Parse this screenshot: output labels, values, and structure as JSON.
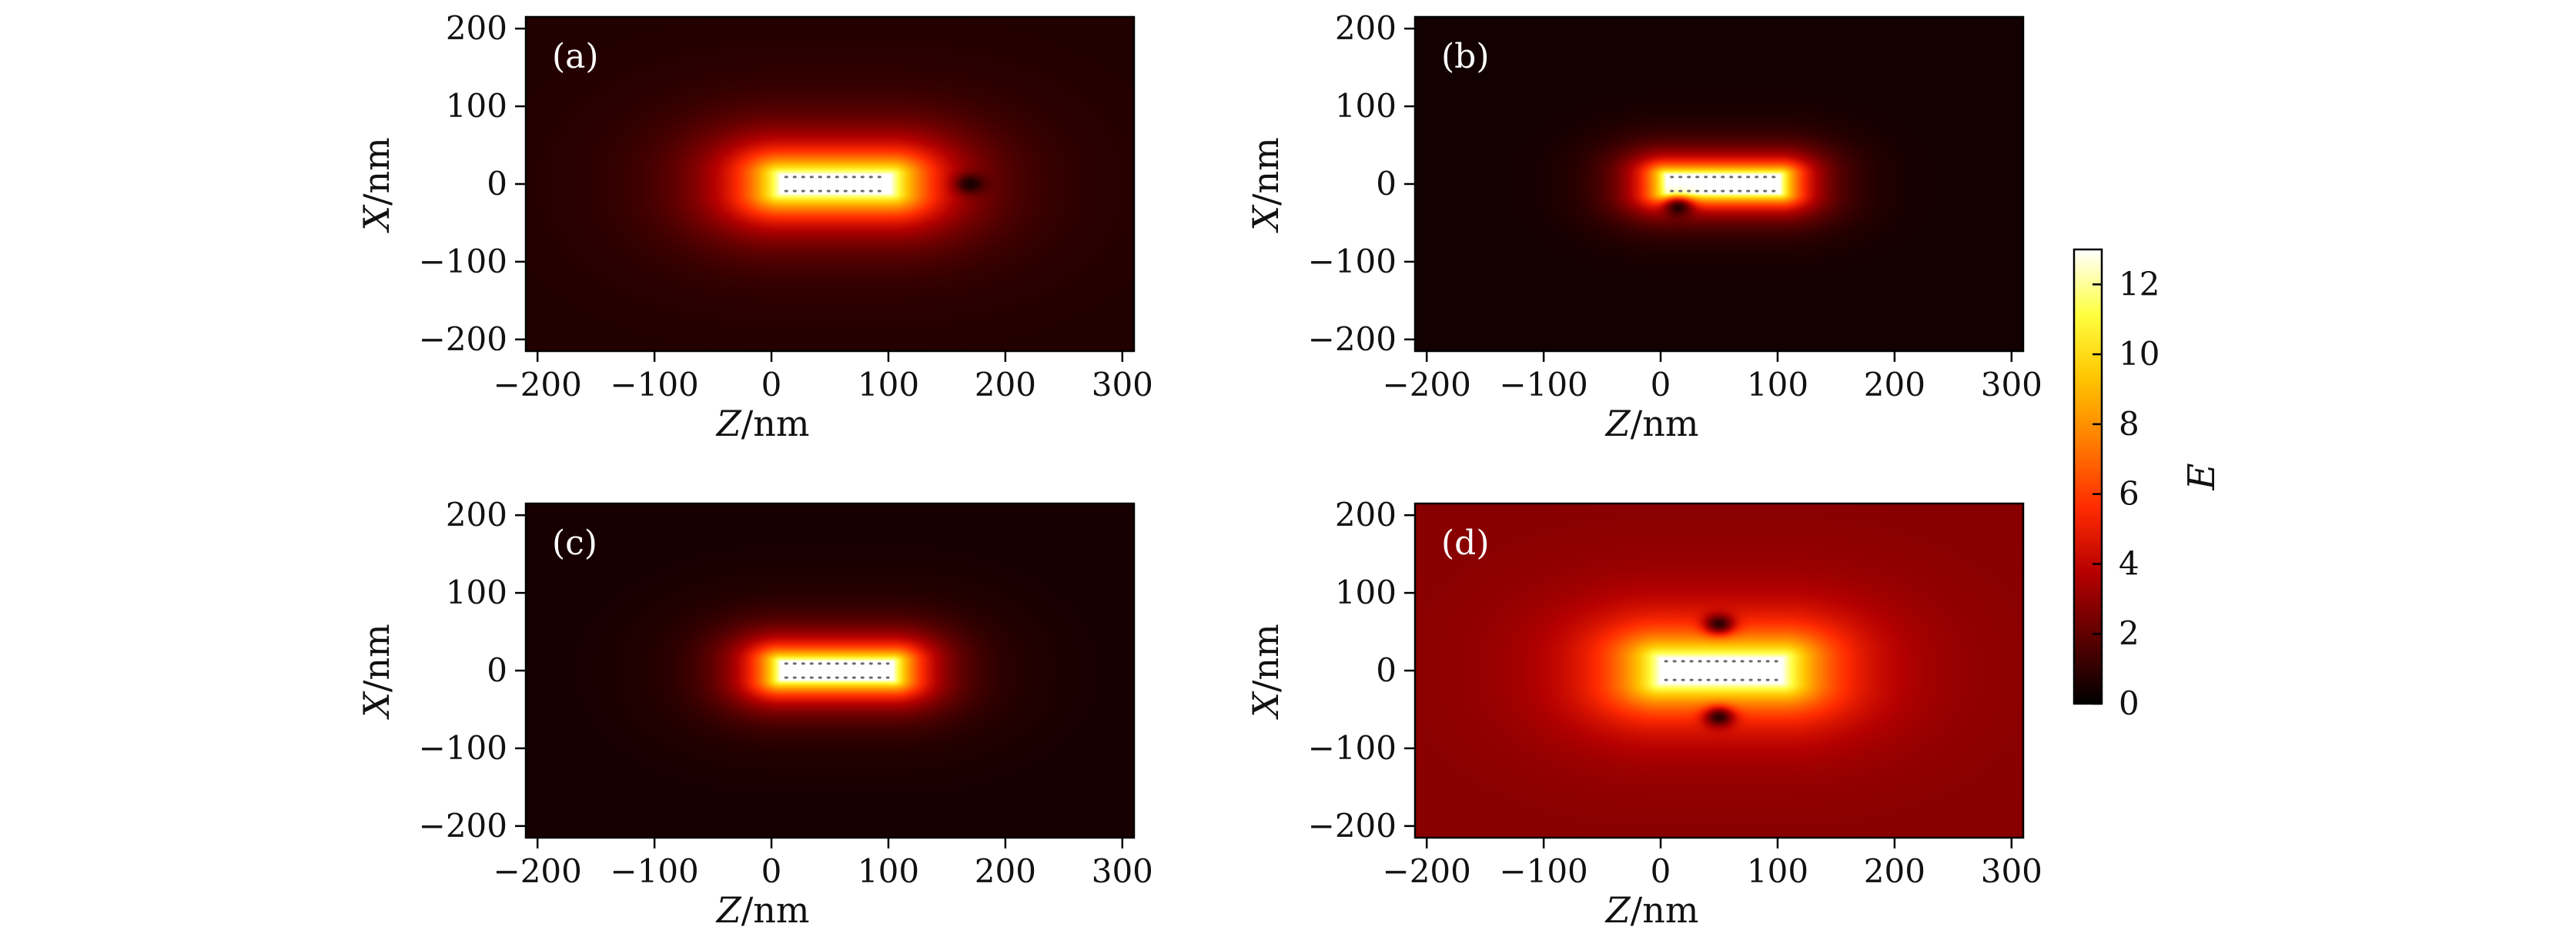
{
  "chart_data": [
    {
      "type": "heatmap",
      "panel_label": "(a)",
      "xlabel": "Z/nm",
      "ylabel": "X/nm",
      "xlim": [
        -210,
        310
      ],
      "ylim": [
        -215,
        215
      ],
      "xticks": [
        -200,
        -100,
        0,
        100,
        200,
        300
      ],
      "yticks": [
        -200,
        -100,
        0,
        100,
        200
      ],
      "rod": {
        "z_range": [
          8,
          102
        ],
        "x_range": [
          -12,
          12
        ]
      },
      "background_E": 0.7,
      "near_field_E": 13,
      "decay_length_z": 95,
      "decay_length_x": 80,
      "dark_spot": {
        "z": 170,
        "x": 0
      }
    },
    {
      "type": "heatmap",
      "panel_label": "(b)",
      "xlabel": "Z/nm",
      "ylabel": "X/nm",
      "xlim": [
        -210,
        310
      ],
      "ylim": [
        -215,
        215
      ],
      "xticks": [
        -200,
        -100,
        0,
        100,
        200,
        300
      ],
      "yticks": [
        -200,
        -100,
        0,
        100,
        200
      ],
      "rod": {
        "z_range": [
          5,
          102
        ],
        "x_range": [
          -12,
          12
        ]
      },
      "background_E": 0.4,
      "near_field_E": 13,
      "decay_length_z": 55,
      "decay_length_x": 45,
      "dark_spot": {
        "z": 15,
        "x": -30
      }
    },
    {
      "type": "heatmap",
      "panel_label": "(c)",
      "xlabel": "Z/nm",
      "ylabel": "X/nm",
      "xlim": [
        -210,
        310
      ],
      "ylim": [
        -215,
        215
      ],
      "xticks": [
        -200,
        -100,
        0,
        100,
        200,
        300
      ],
      "yticks": [
        -200,
        -100,
        0,
        100,
        200
      ],
      "rod": {
        "z_range": [
          8,
          104
        ],
        "x_range": [
          -12,
          12
        ]
      },
      "background_E": 0.5,
      "near_field_E": 13,
      "decay_length_z": 65,
      "decay_length_x": 55,
      "dark_spot": null
    },
    {
      "type": "heatmap",
      "panel_label": "(d)",
      "xlabel": "Z/nm",
      "ylabel": "X/nm",
      "xlim": [
        -210,
        310
      ],
      "ylim": [
        -215,
        215
      ],
      "xticks": [
        -200,
        -100,
        0,
        100,
        200,
        300
      ],
      "yticks": [
        -200,
        -100,
        0,
        100,
        200
      ],
      "rod": {
        "z_range": [
          0,
          104
        ],
        "x_range": [
          -16,
          16
        ]
      },
      "background_E": 2.8,
      "near_field_E": 13,
      "decay_length_z": 100,
      "decay_length_x": 85,
      "dark_spot": {
        "z": 50,
        "x": 60
      },
      "dark_spot_2": {
        "z": 50,
        "x": -60
      }
    }
  ],
  "colorbar": {
    "label": "E",
    "min": 0,
    "max": 13,
    "ticks": [
      0,
      2,
      4,
      6,
      8,
      10,
      12
    ],
    "colormap": "hot",
    "colors": [
      "#000000",
      "#5a0000",
      "#b40000",
      "#ff2a00",
      "#ff7a00",
      "#ffc400",
      "#ffff40",
      "#ffffff"
    ]
  }
}
